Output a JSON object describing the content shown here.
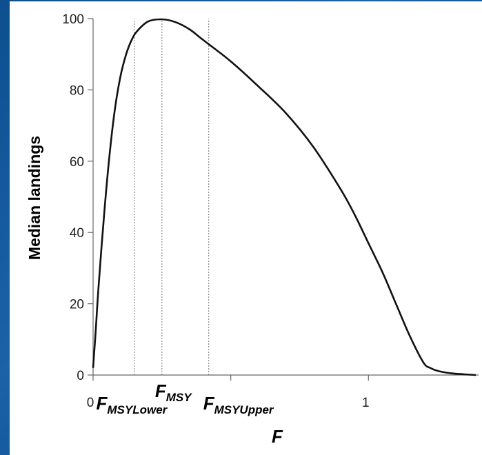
{
  "chart_data": {
    "type": "line",
    "title": "",
    "xlabel": "F",
    "ylabel": "Median landings",
    "xlim": [
      0,
      1.4
    ],
    "ylim": [
      0,
      100
    ],
    "x_ticks": [
      0,
      0.5,
      1
    ],
    "x_tick_labels": [
      "0",
      "",
      "1"
    ],
    "y_ticks": [
      0,
      20,
      40,
      60,
      80,
      100
    ],
    "y_tick_labels": [
      "0",
      "20",
      "40",
      "60",
      "80",
      "100"
    ],
    "grid": false,
    "series": [
      {
        "name": "",
        "x": [
          0,
          0.01,
          0.02,
          0.04,
          0.06,
          0.08,
          0.1,
          0.12,
          0.14,
          0.16,
          0.2,
          0.25,
          0.3,
          0.35,
          0.4,
          0.5,
          0.6,
          0.7,
          0.8,
          0.9,
          0.95,
          1.0,
          1.05,
          1.1,
          1.15,
          1.2,
          1.225,
          1.25,
          1.3,
          1.35,
          1.39
        ],
        "y": [
          2,
          13,
          25,
          45,
          62,
          75,
          84,
          90,
          94,
          96.5,
          99.2,
          99.8,
          99,
          97,
          94,
          88,
          81,
          73.5,
          64,
          52,
          45,
          37,
          29,
          20,
          11,
          3.5,
          2,
          1.2,
          0.5,
          0.2,
          0
        ]
      }
    ],
    "reference_lines": [
      {
        "x": 0.15,
        "label_main": "F",
        "label_sub": "MSYLower"
      },
      {
        "x": 0.25,
        "label_main": "F",
        "label_sub": "MSY"
      },
      {
        "x": 0.42,
        "label_main": "F",
        "label_sub": "MSYUpper"
      }
    ]
  }
}
